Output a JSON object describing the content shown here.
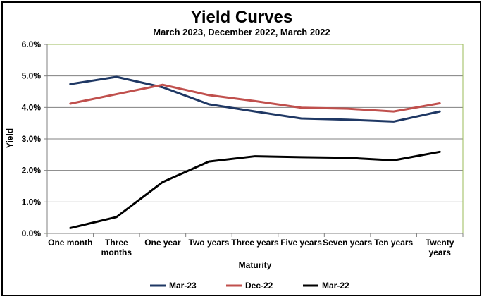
{
  "chart_data": {
    "type": "line",
    "title": "Yield Curves",
    "subtitle": "March 2023, December 2022, March 2022",
    "xlabel": "Maturity",
    "ylabel": "Yield",
    "categories": [
      [
        "One month"
      ],
      [
        "Three",
        "months"
      ],
      [
        "One year"
      ],
      [
        "Two years"
      ],
      [
        "Three years"
      ],
      [
        "Five years"
      ],
      [
        "Seven years"
      ],
      [
        "Ten years"
      ],
      [
        "Twenty",
        "years"
      ]
    ],
    "ylim": [
      0,
      6
    ],
    "yticks": [
      "0.0%",
      "1.0%",
      "2.0%",
      "3.0%",
      "4.0%",
      "5.0%",
      "6.0%"
    ],
    "grid": true,
    "legend_position": "bottom",
    "series": [
      {
        "name": "Mar-23",
        "color": "#1f3864",
        "values": [
          4.74,
          4.97,
          4.64,
          4.1,
          3.87,
          3.65,
          3.61,
          3.55,
          3.87
        ]
      },
      {
        "name": "Dec-22",
        "color": "#c0504d",
        "values": [
          4.12,
          4.42,
          4.72,
          4.39,
          4.2,
          3.99,
          3.96,
          3.87,
          4.13
        ]
      },
      {
        "name": "Mar-22",
        "color": "#000000",
        "values": [
          0.17,
          0.52,
          1.63,
          2.28,
          2.45,
          2.42,
          2.4,
          2.32,
          2.59
        ]
      }
    ]
  }
}
